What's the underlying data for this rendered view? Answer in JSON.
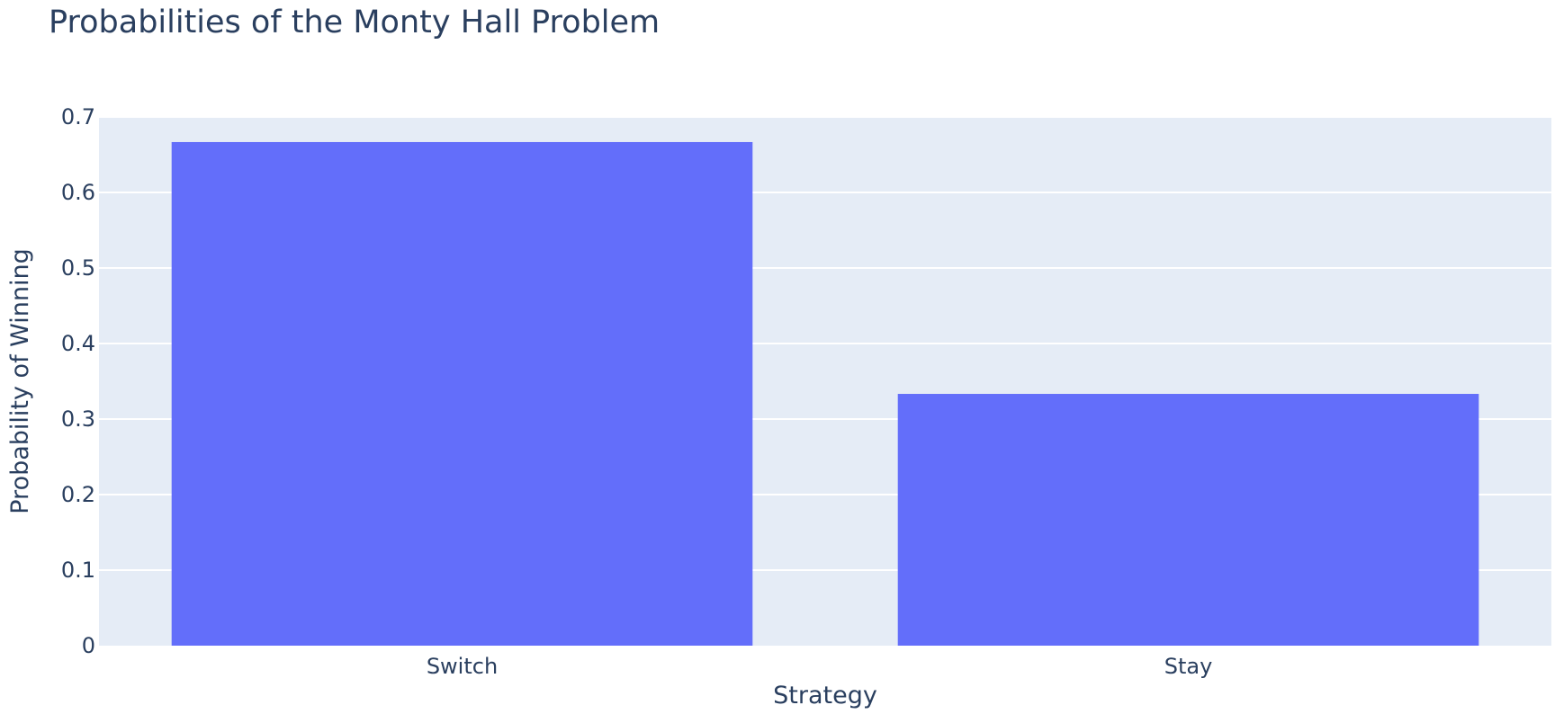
{
  "chart_data": {
    "type": "bar",
    "title": "Probabilities of the Monty Hall Problem",
    "xlabel": "Strategy",
    "ylabel": "Probability of Winning",
    "categories": [
      "Switch",
      "Stay"
    ],
    "values": [
      0.6667,
      0.3333
    ],
    "ylim": [
      0,
      0.7
    ],
    "yticks": [
      "0",
      "0.1",
      "0.2",
      "0.3",
      "0.4",
      "0.5",
      "0.6",
      "0.7"
    ],
    "grid": true,
    "legend": "none",
    "colors": {
      "bar": "#636efa",
      "plot_background": "#e5ecf6",
      "gridline": "#ffffff",
      "text": "#2a3f5f"
    }
  }
}
